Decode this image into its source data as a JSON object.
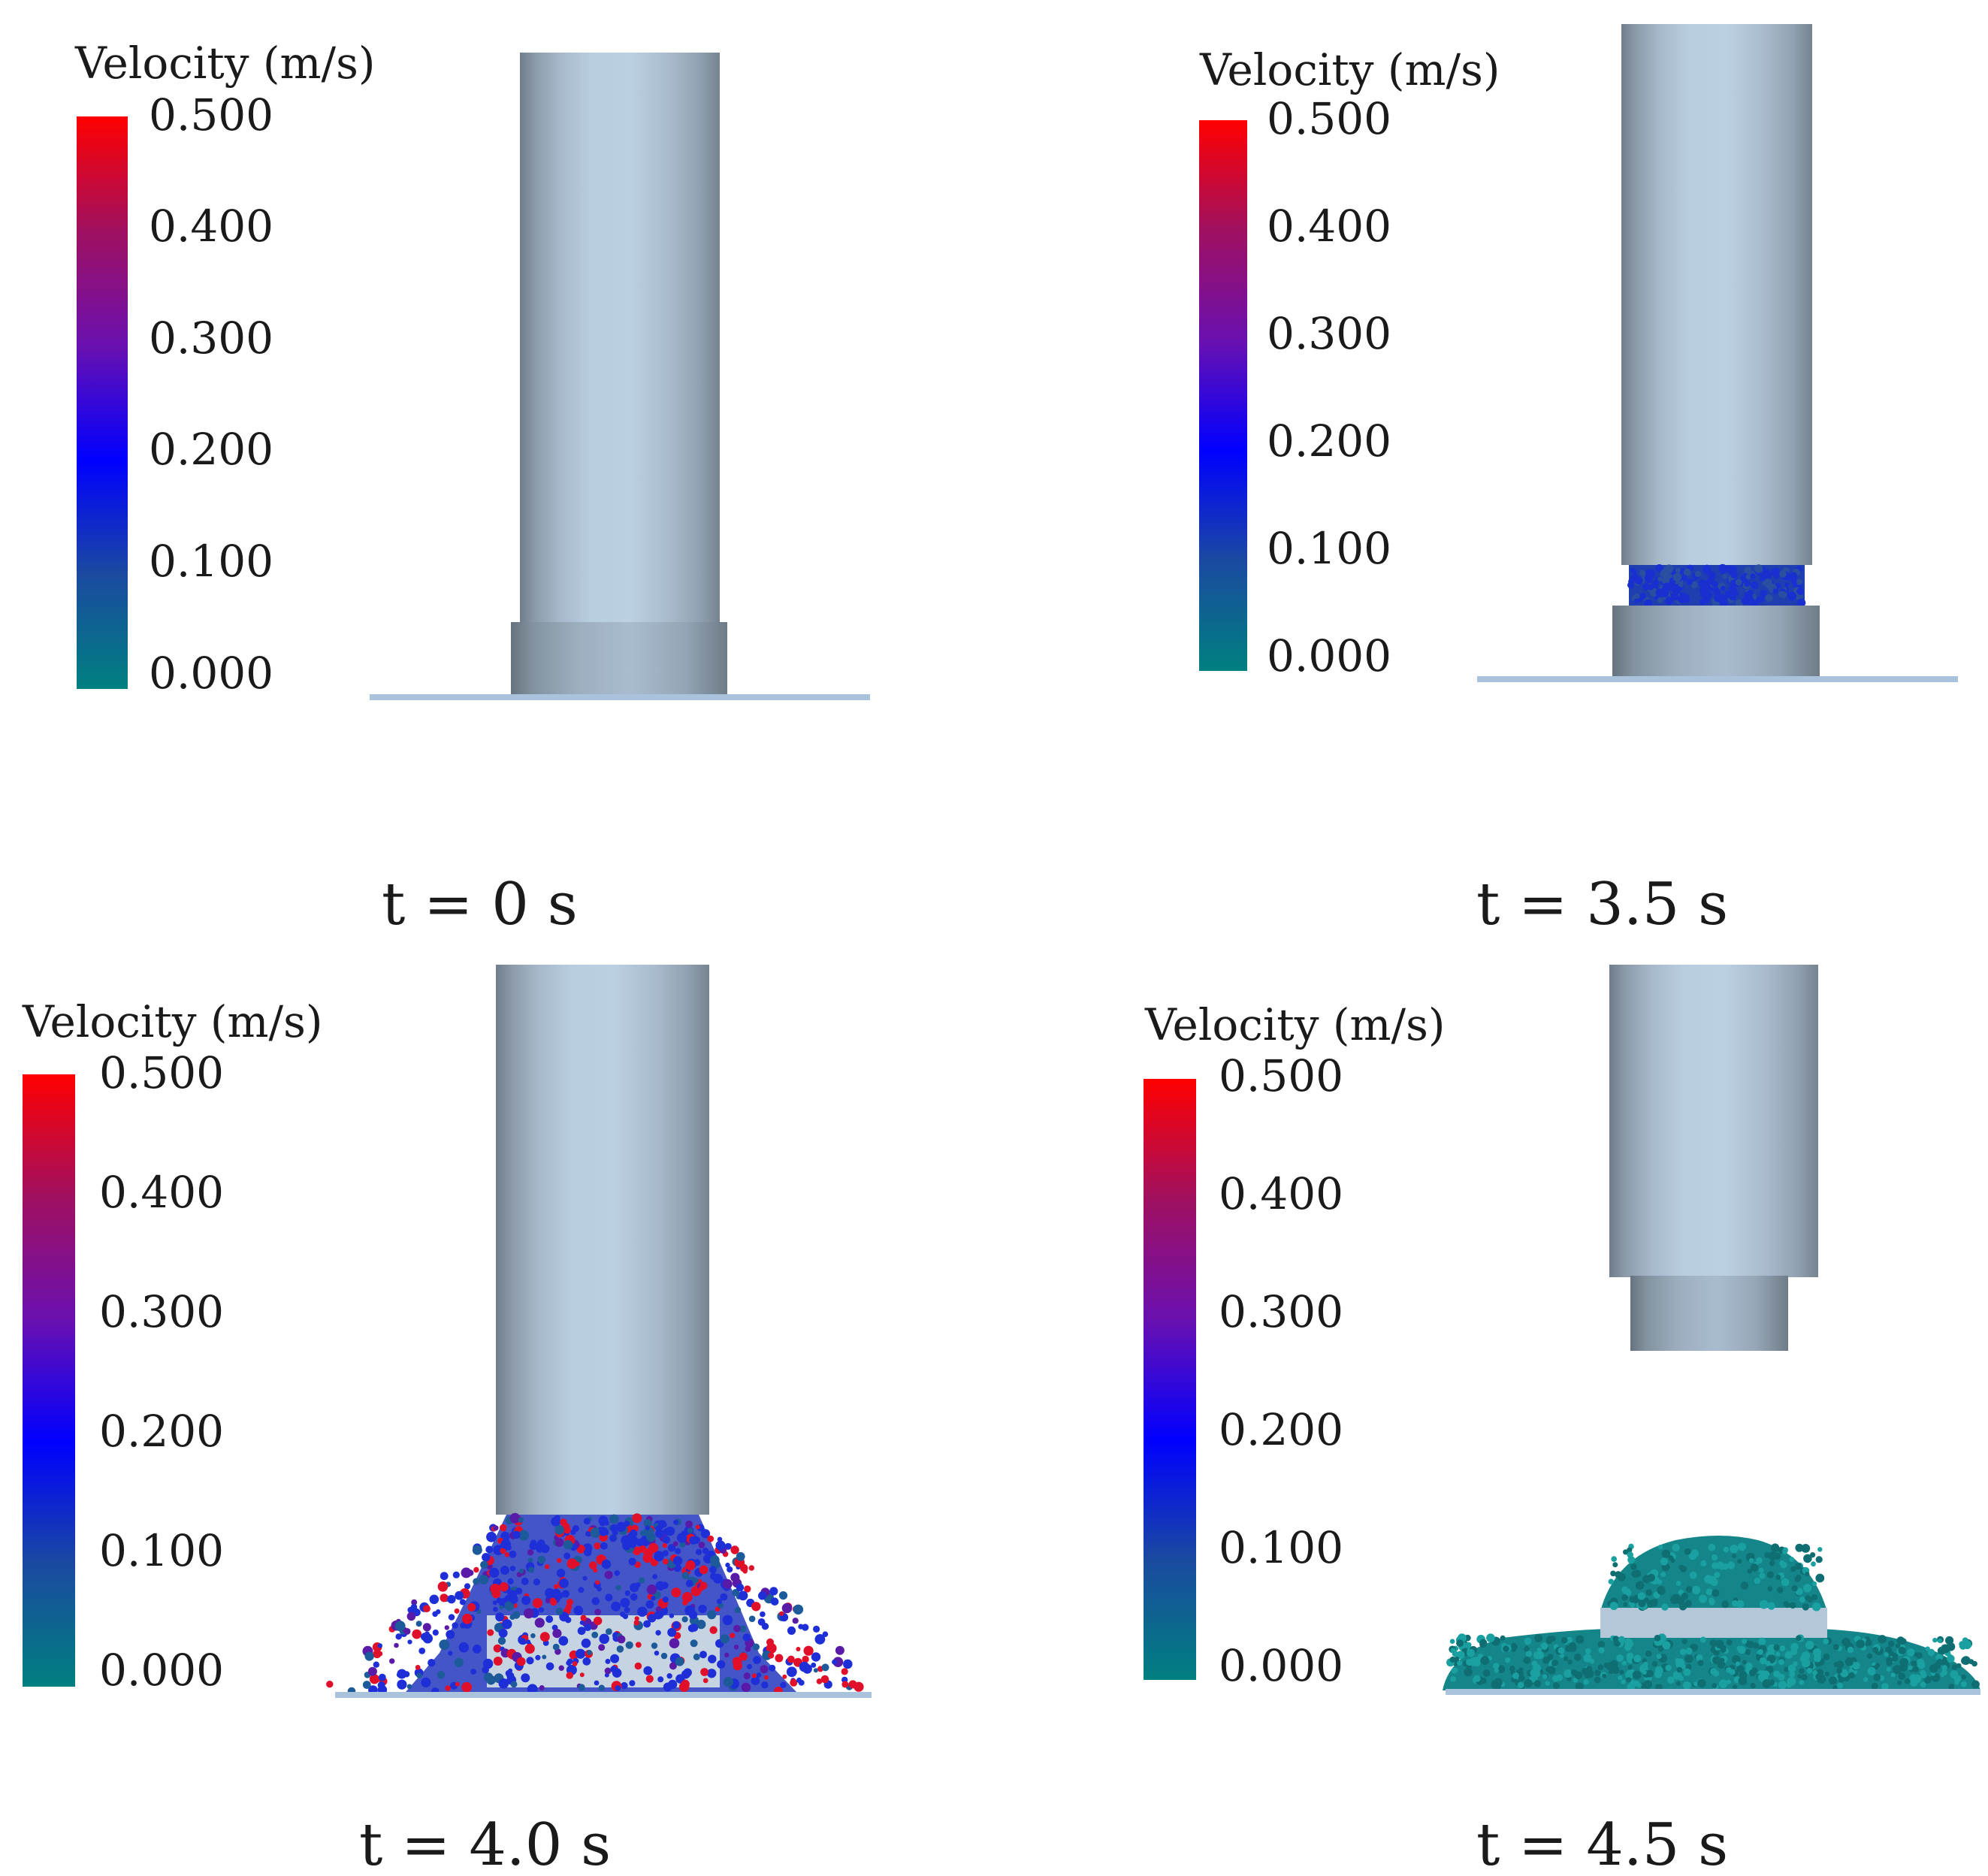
{
  "panels": [
    {
      "caption": "t = 0 s",
      "legend": {
        "title": "Velocity (m/s)",
        "ticks": [
          "0.500",
          "0.400",
          "0.300",
          "0.200",
          "0.100",
          "0.000"
        ]
      }
    },
    {
      "caption": "t = 3.5 s",
      "legend": {
        "title": "Velocity (m/s)",
        "ticks": [
          "0.500",
          "0.400",
          "0.300",
          "0.200",
          "0.100",
          "0.000"
        ]
      }
    },
    {
      "caption": "t = 4.0 s",
      "legend": {
        "title": "Velocity (m/s)",
        "ticks": [
          "0.500",
          "0.400",
          "0.300",
          "0.200",
          "0.100",
          "0.000"
        ]
      }
    },
    {
      "caption": "t = 4.5 s",
      "legend": {
        "title": "Velocity (m/s)",
        "ticks": [
          "0.500",
          "0.400",
          "0.300",
          "0.200",
          "0.100",
          "0.000"
        ]
      }
    }
  ],
  "colors": {
    "scale_max": "#ff0000",
    "scale_mid_high": "#7a1aa0",
    "scale_mid": "#0000ff",
    "scale_min": "#008080",
    "cylinder": "#b7cbe0",
    "cylinder_shade": "#7f8f9e",
    "ground": "#a9c3dc"
  }
}
